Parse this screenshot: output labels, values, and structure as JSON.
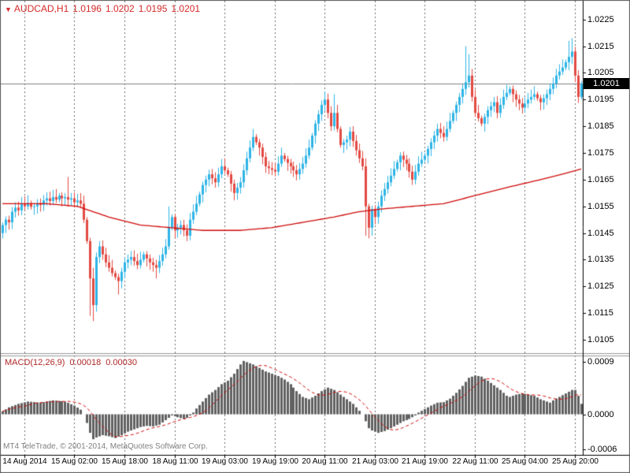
{
  "header": {
    "dropdown_icon": "▼",
    "symbol_period": "AUDCAD,H1",
    "open": "1.0196",
    "high": "1.0202",
    "low": "1.0195",
    "close": "1.0201"
  },
  "watermark": "MT4 TeleTrade, © 2001-2014, MetaQuotes Software Corp.",
  "colors": {
    "bull": "#2eb4e6",
    "bear": "#e24a42",
    "ma": "#cf0a0a",
    "signal": "#cf0a0a",
    "histogram": "#616161",
    "grid": "#6b6b6b",
    "price_line": "#808080",
    "header_text": "#d42a2a",
    "macd_text": "#b02828",
    "badge_bg": "#000000",
    "badge_text": "#ffffff",
    "watermark": "#808080",
    "axis_text": "#000000"
  },
  "chart_data": {
    "type": "candlestick",
    "title": "AUDCAD,H1",
    "symbol": "AUDCAD",
    "timeframe": "H1",
    "x_labels": [
      "14 Aug 2014",
      "15 Aug 02:00",
      "15 Aug 18:00",
      "18 Aug 11:00",
      "19 Aug 03:00",
      "19 Aug 19:00",
      "20 Aug 11:00",
      "21 Aug 03:00",
      "21 Aug 19:00",
      "22 Aug 11:00",
      "25 Aug 04:00",
      "25 Aug 20:00"
    ],
    "x_label_start_index": 7,
    "x_label_step": 16,
    "y_axis": {
      "ticks": [
        "1.0225",
        "1.0215",
        "1.0205",
        "1.0195",
        "1.0185",
        "1.0175",
        "1.0165",
        "1.0155",
        "1.0145",
        "1.0135",
        "1.0125",
        "1.0115",
        "1.0105"
      ],
      "render_max": 1.0232,
      "render_min": 1.01,
      "current_price": 1.0201,
      "current_price_label": "1.0201"
    },
    "candles": {
      "first_open": 1.0145,
      "closes": [
        1.0148,
        1.015,
        1.0149,
        1.0153,
        1.01545,
        1.01535,
        1.0156,
        1.0155,
        1.01562,
        1.01548,
        1.0155,
        1.01562,
        1.01555,
        1.01572,
        1.0158,
        1.0157,
        1.01585,
        1.01575,
        1.0159,
        1.0158,
        1.01585,
        1.01575,
        1.0158,
        1.01565,
        1.01572,
        1.0156,
        1.015,
        1.0142,
        1.0128,
        1.0118,
        1.0136,
        1.014,
        1.0137,
        1.0134,
        1.0132,
        1.013,
        1.01285,
        1.0127,
        1.01305,
        1.0134,
        1.0135,
        1.0136,
        1.01345,
        1.0133,
        1.0135,
        1.0137,
        1.01355,
        1.0134,
        1.0133,
        1.0132,
        1.01345,
        1.0137,
        1.014,
        1.0147,
        1.0151,
        1.0146,
        1.0147,
        1.0148,
        1.0146,
        1.0144,
        1.015,
        1.0153,
        1.0156,
        1.01595,
        1.0163,
        1.0165,
        1.0167,
        1.01655,
        1.0164,
        1.0167,
        1.017,
        1.01685,
        1.0167,
        1.01635,
        1.016,
        1.0162,
        1.0164,
        1.01685,
        1.0173,
        1.0177,
        1.0181,
        1.0179,
        1.0177,
        1.01735,
        1.017,
        1.01693,
        1.01687,
        1.0168,
        1.0171,
        1.0174,
        1.01727,
        1.01713,
        1.017,
        1.01685,
        1.0167,
        1.0169,
        1.0171,
        1.0174,
        1.0177,
        1.01815,
        1.0186,
        1.01895,
        1.0193,
        1.0195,
        1.019,
        1.0185,
        1.019,
        1.0184,
        1.0178,
        1.0179,
        1.018,
        1.0183,
        1.01795,
        1.0176,
        1.0173,
        1.017,
        1.0155,
        1.0147,
        1.0154,
        1.0151,
        1.0155,
        1.0159,
        1.01615,
        1.0164,
        1.01665,
        1.0169,
        1.01715,
        1.0174,
        1.01725,
        1.0171,
        1.0168,
        1.0165,
        1.0168,
        1.0171,
        1.01725,
        1.0174,
        1.01765,
        1.0179,
        1.01815,
        1.0184,
        1.01825,
        1.0181,
        1.0184,
        1.0187,
        1.019,
        1.0193,
        1.0196,
        1.0199,
        1.02015,
        1.0204,
        1.0196,
        1.019,
        1.0188,
        1.0186,
        1.01885,
        1.0191,
        1.01925,
        1.0194,
        1.019,
        1.0193,
        1.0196,
        1.01975,
        1.0199,
        1.0197,
        1.0195,
        1.01935,
        1.0192,
        1.01935,
        1.0195,
        1.0196,
        1.0197,
        1.01955,
        1.0194,
        1.01955,
        1.0197,
        1.0199,
        1.0201,
        1.0204,
        1.02055,
        1.0207,
        1.0209,
        1.0211,
        1.0213,
        1.0204,
        1.0196,
        1.0201
      ],
      "wick_overrides": {
        "0": {
          "low": 1.0143
        },
        "21": {
          "high": 1.0166
        },
        "28": {
          "low": 1.0114
        },
        "29": {
          "low": 1.0112,
          "high": 1.0132
        },
        "37": {
          "low": 1.0122
        },
        "49": {
          "low": 1.0128
        },
        "53": {
          "high": 1.0155
        },
        "103": {
          "high": 1.0198
        },
        "106": {
          "high": 1.0197
        },
        "116": {
          "low": 1.0144
        },
        "117": {
          "low": 1.0143
        },
        "148": {
          "high": 1.0215
        },
        "149": {
          "high": 1.0212
        },
        "181": {
          "high": 1.0217
        },
        "182": {
          "high": 1.0218
        },
        "185": {
          "high": 1.0202,
          "low": 1.0195
        }
      }
    },
    "ma_points": [
      [
        0,
        1.0156
      ],
      [
        14,
        1.0156
      ],
      [
        24,
        1.0155
      ],
      [
        34,
        1.0151
      ],
      [
        44,
        1.0148
      ],
      [
        54,
        1.0147
      ],
      [
        64,
        1.0146
      ],
      [
        76,
        1.0146
      ],
      [
        86,
        1.0147
      ],
      [
        96,
        1.0149
      ],
      [
        106,
        1.0151
      ],
      [
        114,
        1.0153
      ],
      [
        121,
        1.0154
      ],
      [
        131,
        1.0155
      ],
      [
        141,
        1.0156
      ],
      [
        151,
        1.0159
      ],
      [
        161,
        1.0162
      ],
      [
        172,
        1.0165
      ],
      [
        182,
        1.0168
      ],
      [
        185,
        1.0169
      ]
    ],
    "macd": {
      "type": "bar",
      "label": "MACD(12,26,9)",
      "main_value_label": "0.00018",
      "signal_value_label": "0.00030",
      "signal_period": 9,
      "render_max": 0.001,
      "render_min": -0.0007,
      "ticks": [
        {
          "label": "0.0009",
          "value": 0.0009
        },
        {
          "label": "0.0000",
          "value": 0
        },
        {
          "label": "-0.0006",
          "value": -0.0006
        }
      ],
      "values_x1e4": [
        0.5,
        0.85,
        1.2,
        1.4,
        1.6,
        1.8,
        1.93,
        2.07,
        2.2,
        2.15,
        2.1,
        2.05,
        2.0,
        2.1,
        2.2,
        2.3,
        2.4,
        2.35,
        2.3,
        2.25,
        2.2,
        1.97,
        1.73,
        1.5,
        1.15,
        0.8,
        0.0,
        -1.5,
        -3.2,
        -4.3,
        -4.0,
        -3.8,
        -3.6,
        -3.7,
        -3.8,
        -3.95,
        -4.1,
        -3.85,
        -3.6,
        -3.3,
        -3.0,
        -2.8,
        -2.6,
        -2.4,
        -2.2,
        -2.1,
        -2.0,
        -2.05,
        -2.1,
        -1.95,
        -1.8,
        -1.4,
        -1.0,
        -0.6,
        -0.2,
        -0.35,
        -0.5,
        -0.65,
        -0.8,
        -0.6,
        -0.2,
        0.3,
        1.0,
        1.6,
        2.2,
        2.8,
        3.4,
        3.8,
        4.2,
        4.7,
        5.2,
        5.5,
        5.8,
        6.4,
        7.0,
        7.8,
        8.6,
        9.2,
        9.0,
        8.8,
        8.6,
        8.3,
        8.0,
        7.7,
        7.4,
        7.2,
        7.0,
        6.8,
        6.6,
        6.3,
        6.0,
        5.6,
        5.2,
        4.6,
        4.0,
        3.5,
        3.0,
        2.8,
        2.6,
        2.9,
        3.2,
        3.6,
        4.0,
        4.3,
        4.6,
        4.4,
        4.2,
        3.8,
        3.4,
        3.0,
        2.6,
        2.2,
        1.8,
        1.2,
        0.6,
        0.0,
        -1.2,
        -2.4,
        -2.8,
        -3.0,
        -3.2,
        -3.05,
        -2.9,
        -2.65,
        -2.4,
        -2.1,
        -1.8,
        -1.5,
        -1.2,
        -1.0,
        -0.8,
        -0.5,
        -0.2,
        0.3,
        0.6,
        0.9,
        1.2,
        1.5,
        1.75,
        2.0,
        2.05,
        2.1,
        2.4,
        2.7,
        3.2,
        3.7,
        4.3,
        4.9,
        5.6,
        6.3,
        6.5,
        6.7,
        6.6,
        6.5,
        6.15,
        5.8,
        5.4,
        5.0,
        4.6,
        4.2,
        3.7,
        3.2,
        3.0,
        3.2,
        3.4,
        3.5,
        3.6,
        3.5,
        3.4,
        3.3,
        3.2,
        2.9,
        2.6,
        2.4,
        2.2,
        2.0,
        2.4,
        2.7,
        3.0,
        3.3,
        3.6,
        3.9,
        4.2,
        4.2,
        3.2,
        1.8
      ]
    }
  }
}
